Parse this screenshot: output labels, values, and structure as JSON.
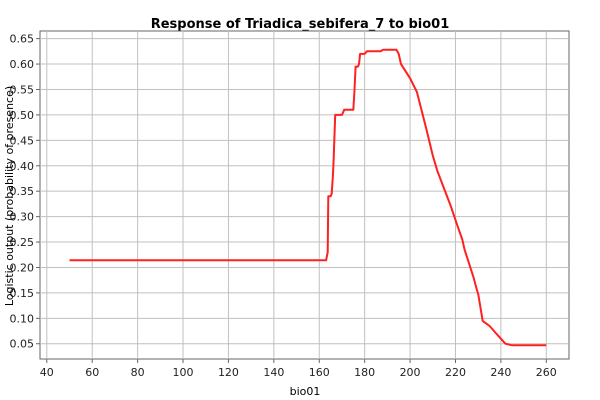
{
  "chart_data": {
    "type": "line",
    "title": "Response of Triadica_sebifera_7 to bio01",
    "xlabel": "bio01",
    "ylabel": "Logistic output (probability of presence)",
    "xlim": [
      37,
      270
    ],
    "ylim": [
      0.02,
      0.665
    ],
    "xticks": [
      40,
      60,
      80,
      100,
      120,
      140,
      160,
      180,
      200,
      220,
      240,
      260
    ],
    "yticks": [
      0.05,
      0.1,
      0.15,
      0.2,
      0.25,
      0.3,
      0.35,
      0.4,
      0.45,
      0.5,
      0.55,
      0.6,
      0.65
    ],
    "grid": true,
    "series": [
      {
        "color": "#ff2020",
        "x": [
          50,
          163,
          163.7,
          164,
          165,
          165.5,
          166,
          166.3,
          167,
          170,
          171,
          175,
          175.5,
          176,
          177,
          177.5,
          178,
          180,
          181,
          182,
          187,
          188,
          193,
          194,
          195,
          196,
          200,
          203,
          207,
          210,
          212,
          215,
          218,
          221,
          223,
          224,
          228,
          229.5,
          230,
          232,
          235,
          238,
          240,
          242,
          245,
          250,
          255,
          260
        ],
        "y": [
          0.214,
          0.214,
          0.23,
          0.34,
          0.34,
          0.345,
          0.38,
          0.41,
          0.5,
          0.5,
          0.51,
          0.51,
          0.545,
          0.595,
          0.595,
          0.6,
          0.62,
          0.62,
          0.625,
          0.625,
          0.625,
          0.628,
          0.628,
          0.628,
          0.62,
          0.6,
          0.572,
          0.545,
          0.475,
          0.42,
          0.39,
          0.355,
          0.32,
          0.28,
          0.255,
          0.235,
          0.18,
          0.155,
          0.148,
          0.095,
          0.085,
          0.07,
          0.06,
          0.05,
          0.047,
          0.047,
          0.047,
          0.047
        ]
      }
    ]
  }
}
